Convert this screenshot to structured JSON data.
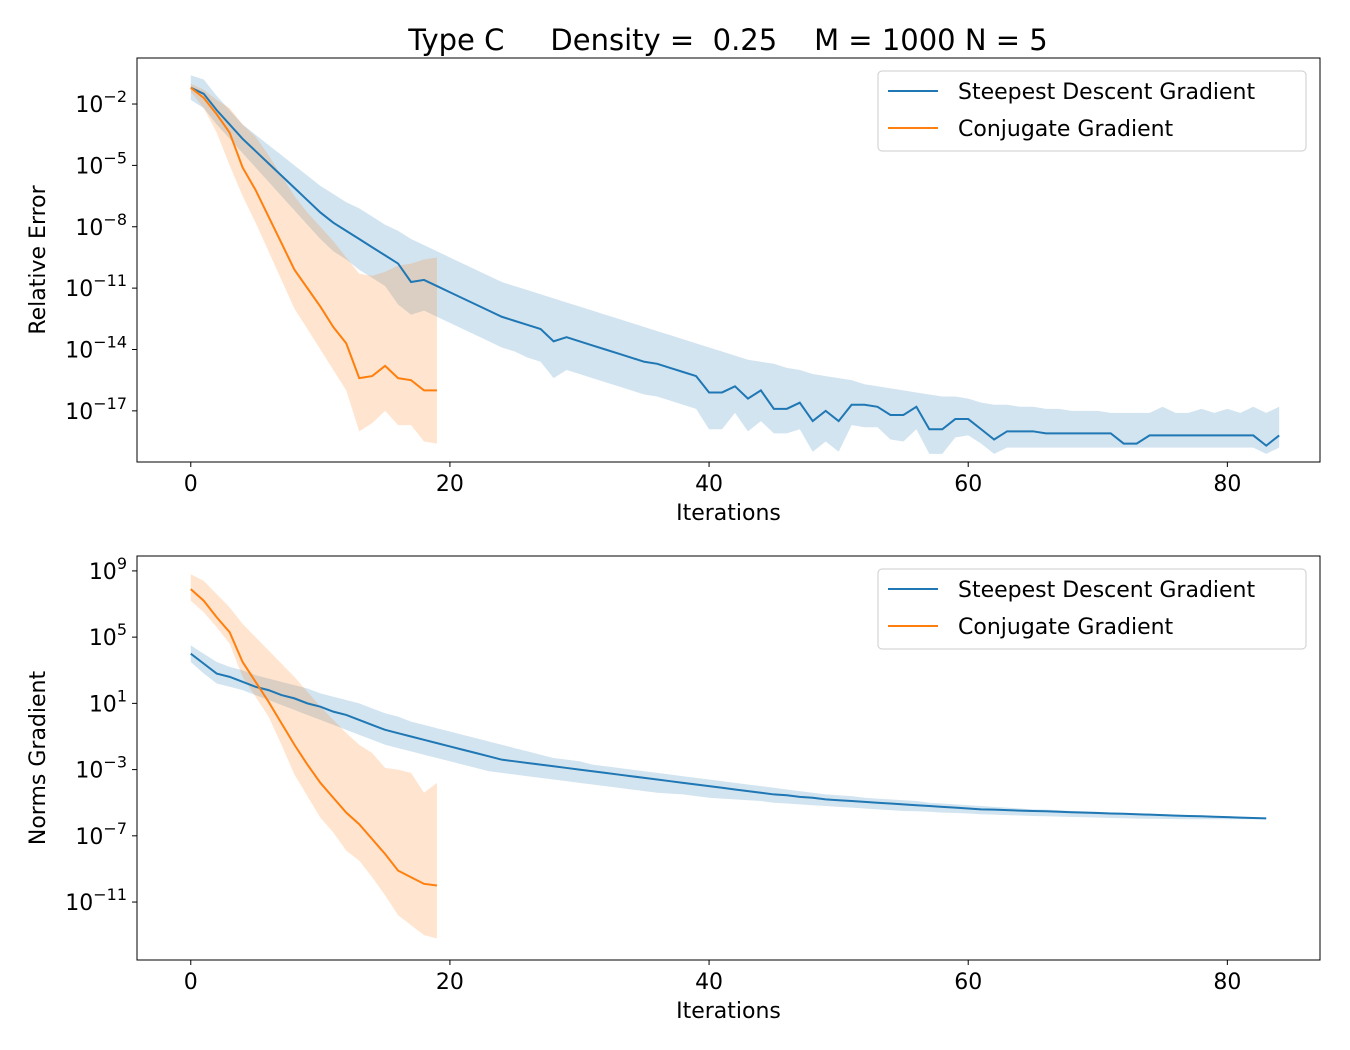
{
  "figure": {
    "title": "Type C     Density =  0.25    M = 1000 N = 5"
  },
  "colors": {
    "sd": "#1f77b4",
    "cg": "#ff7f0e"
  },
  "chart_data": [
    {
      "type": "line",
      "ylabel": "Relative Error",
      "xlabel": "Iterations",
      "xlim": [
        -4.15,
        87.15
      ],
      "ylim_log10": [
        -19.5,
        0.25
      ],
      "y_scale": "log",
      "xticks": [
        0,
        20,
        40,
        60,
        80
      ],
      "ytick_exponents": [
        -2,
        -5,
        -8,
        -11,
        -14,
        -17
      ],
      "legend_position": "upper right",
      "series": [
        {
          "name": "Steepest Descent Gradient",
          "color": "#1f77b4",
          "x_start": 0,
          "log10_mean": [
            -1.2,
            -1.5,
            -2.3,
            -3.0,
            -3.7,
            -4.3,
            -4.9,
            -5.5,
            -6.1,
            -6.7,
            -7.3,
            -7.8,
            -8.2,
            -8.6,
            -9.0,
            -9.4,
            -9.8,
            -10.7,
            -10.6,
            -10.9,
            -11.2,
            -11.5,
            -11.8,
            -12.1,
            -12.4,
            -12.6,
            -12.8,
            -13.0,
            -13.6,
            -13.4,
            -13.6,
            -13.8,
            -14.0,
            -14.2,
            -14.4,
            -14.6,
            -14.7,
            -14.9,
            -15.1,
            -15.3,
            -16.1,
            -16.1,
            -15.8,
            -16.4,
            -16.0,
            -16.9,
            -16.9,
            -16.6,
            -17.5,
            -17.0,
            -17.5,
            -16.7,
            -16.7,
            -16.8,
            -17.2,
            -17.2,
            -16.8,
            -17.9,
            -17.9,
            -17.4,
            -17.4,
            -17.9,
            -18.4,
            -18.0,
            -18.0,
            -18.0,
            -18.1,
            -18.1,
            -18.1,
            -18.1,
            -18.1,
            -18.1,
            -18.6,
            -18.6,
            -18.2,
            -18.2,
            -18.2,
            -18.2,
            -18.2,
            -18.2,
            -18.2,
            -18.2,
            -18.2,
            -18.7,
            -18.2
          ],
          "log10_upper": [
            -0.6,
            -0.8,
            -1.6,
            -2.3,
            -3.0,
            -3.5,
            -4.0,
            -4.5,
            -5.0,
            -5.5,
            -6.0,
            -6.4,
            -6.8,
            -7.1,
            -7.5,
            -7.9,
            -8.2,
            -8.6,
            -8.9,
            -9.2,
            -9.5,
            -9.8,
            -10.1,
            -10.4,
            -10.7,
            -10.9,
            -11.1,
            -11.3,
            -11.5,
            -11.7,
            -11.9,
            -12.1,
            -12.3,
            -12.5,
            -12.7,
            -12.9,
            -13.1,
            -13.3,
            -13.5,
            -13.7,
            -13.9,
            -14.1,
            -14.3,
            -14.5,
            -14.6,
            -14.7,
            -14.9,
            -15.0,
            -15.2,
            -15.3,
            -15.4,
            -15.5,
            -15.7,
            -15.8,
            -15.9,
            -16.0,
            -16.1,
            -16.2,
            -16.3,
            -16.3,
            -16.4,
            -16.6,
            -16.7,
            -16.7,
            -16.8,
            -16.8,
            -16.9,
            -16.9,
            -17.0,
            -17.0,
            -17.0,
            -17.1,
            -17.1,
            -17.1,
            -17.1,
            -16.8,
            -17.1,
            -17.1,
            -16.9,
            -17.1,
            -16.9,
            -17.1,
            -16.8,
            -17.1,
            -16.8
          ],
          "log10_lower": [
            -1.8,
            -2.2,
            -3.0,
            -3.7,
            -4.4,
            -5.1,
            -5.8,
            -6.5,
            -7.2,
            -7.9,
            -8.6,
            -9.2,
            -9.6,
            -10.1,
            -10.5,
            -10.9,
            -11.8,
            -12.3,
            -12.1,
            -12.4,
            -12.7,
            -13.0,
            -13.3,
            -13.6,
            -13.9,
            -14.1,
            -14.4,
            -14.6,
            -15.4,
            -15.0,
            -15.2,
            -15.4,
            -15.6,
            -15.8,
            -16.0,
            -16.2,
            -16.3,
            -16.5,
            -16.7,
            -16.9,
            -17.9,
            -17.9,
            -17.1,
            -18.0,
            -17.5,
            -18.1,
            -18.1,
            -17.9,
            -19.0,
            -18.5,
            -19.0,
            -17.7,
            -17.8,
            -17.8,
            -18.4,
            -18.5,
            -17.9,
            -19.1,
            -19.1,
            -18.3,
            -18.2,
            -18.6,
            -19.1,
            -18.8,
            -18.8,
            -18.8,
            -18.8,
            -18.8,
            -18.8,
            -18.8,
            -18.8,
            -18.8,
            -18.8,
            -18.8,
            -18.8,
            -18.8,
            -18.8,
            -18.8,
            -18.8,
            -18.8,
            -18.8,
            -18.8,
            -18.8,
            -19.1,
            -18.8
          ]
        },
        {
          "name": "Conjugate Gradient",
          "color": "#ff7f0e",
          "x_start": 0,
          "log10_mean": [
            -1.2,
            -1.7,
            -2.5,
            -3.4,
            -5.1,
            -6.2,
            -7.5,
            -8.8,
            -10.1,
            -11.0,
            -11.9,
            -12.9,
            -13.7,
            -15.4,
            -15.3,
            -14.8,
            -15.4,
            -15.5,
            -16.0,
            -16.0
          ],
          "log10_upper": [
            -1.0,
            -1.3,
            -1.8,
            -2.2,
            -3.0,
            -3.6,
            -4.5,
            -5.5,
            -6.5,
            -7.3,
            -8.0,
            -8.7,
            -9.5,
            -10.3,
            -10.4,
            -10.2,
            -9.9,
            -9.8,
            -9.6,
            -9.5
          ],
          "log10_lower": [
            -1.4,
            -2.2,
            -3.4,
            -5.0,
            -6.5,
            -7.8,
            -9.2,
            -10.6,
            -12.0,
            -13.0,
            -14.0,
            -15.0,
            -16.0,
            -18.0,
            -17.6,
            -17.0,
            -17.7,
            -17.7,
            -18.5,
            -18.6
          ]
        }
      ]
    },
    {
      "type": "line",
      "ylabel": "Norms Gradient",
      "xlabel": "Iterations",
      "xlim": [
        -4.15,
        87.15
      ],
      "ylim_log10": [
        -14.5,
        9.9
      ],
      "y_scale": "log",
      "xticks": [
        0,
        20,
        40,
        60,
        80
      ],
      "ytick_exponents": [
        9,
        5,
        1,
        -3,
        -7,
        -11
      ],
      "legend_position": "upper right",
      "series": [
        {
          "name": "Steepest Descent Gradient",
          "color": "#1f77b4",
          "x_start": 0,
          "log10_mean": [
            4.0,
            3.4,
            2.8,
            2.6,
            2.3,
            2.0,
            1.8,
            1.5,
            1.3,
            1.0,
            0.8,
            0.5,
            0.3,
            0.0,
            -0.3,
            -0.6,
            -0.8,
            -1.0,
            -1.2,
            -1.4,
            -1.6,
            -1.8,
            -2.0,
            -2.2,
            -2.4,
            -2.5,
            -2.6,
            -2.7,
            -2.8,
            -2.9,
            -3.0,
            -3.1,
            -3.2,
            -3.3,
            -3.4,
            -3.5,
            -3.6,
            -3.7,
            -3.8,
            -3.9,
            -4.0,
            -4.1,
            -4.2,
            -4.3,
            -4.4,
            -4.5,
            -4.55,
            -4.65,
            -4.7,
            -4.8,
            -4.85,
            -4.9,
            -4.95,
            -5.0,
            -5.05,
            -5.1,
            -5.15,
            -5.2,
            -5.25,
            -5.3,
            -5.35,
            -5.4,
            -5.42,
            -5.45,
            -5.48,
            -5.5,
            -5.52,
            -5.55,
            -5.58,
            -5.6,
            -5.62,
            -5.65,
            -5.67,
            -5.7,
            -5.72,
            -5.75,
            -5.78,
            -5.8,
            -5.82,
            -5.85,
            -5.87,
            -5.9,
            -5.92,
            -5.95
          ],
          "log10_upper": [
            4.5,
            4.0,
            3.5,
            3.2,
            3.0,
            2.7,
            2.5,
            2.3,
            2.1,
            1.9,
            1.6,
            1.4,
            1.2,
            1.0,
            0.7,
            0.4,
            0.2,
            -0.1,
            -0.3,
            -0.5,
            -0.7,
            -0.9,
            -1.1,
            -1.3,
            -1.5,
            -1.7,
            -1.9,
            -2.1,
            -2.3,
            -2.4,
            -2.5,
            -2.7,
            -2.8,
            -2.9,
            -3.0,
            -3.1,
            -3.2,
            -3.3,
            -3.4,
            -3.5,
            -3.6,
            -3.7,
            -3.8,
            -3.9,
            -4.0,
            -4.1,
            -4.2,
            -4.3,
            -4.4,
            -4.5,
            -4.55,
            -4.6,
            -4.7,
            -4.75,
            -4.8,
            -4.85,
            -4.9,
            -5.0,
            -5.05,
            -5.1,
            -5.15,
            -5.2,
            -5.25,
            -5.3,
            -5.35,
            -5.4,
            -5.42,
            -5.45,
            -5.5,
            -5.52,
            -5.55,
            -5.6,
            -5.62,
            -5.65,
            -5.67,
            -5.7,
            -5.72,
            -5.75,
            -5.78,
            -5.8,
            -5.82,
            -5.85,
            -5.87,
            -5.9
          ],
          "log10_lower": [
            3.5,
            2.8,
            2.2,
            2.0,
            1.8,
            1.5,
            1.2,
            0.9,
            0.6,
            0.3,
            0.0,
            -0.3,
            -0.6,
            -0.9,
            -1.2,
            -1.5,
            -1.7,
            -1.9,
            -2.1,
            -2.3,
            -2.5,
            -2.7,
            -2.9,
            -3.1,
            -3.2,
            -3.3,
            -3.4,
            -3.5,
            -3.6,
            -3.7,
            -3.8,
            -3.9,
            -4.0,
            -4.1,
            -4.2,
            -4.3,
            -4.4,
            -4.45,
            -4.5,
            -4.6,
            -4.7,
            -4.75,
            -4.8,
            -4.85,
            -4.9,
            -5.0,
            -5.05,
            -5.1,
            -5.15,
            -5.2,
            -5.25,
            -5.3,
            -5.35,
            -5.4,
            -5.45,
            -5.5,
            -5.52,
            -5.55,
            -5.6,
            -5.62,
            -5.65,
            -5.7,
            -5.72,
            -5.75,
            -5.77,
            -5.8,
            -5.82,
            -5.84,
            -5.86,
            -5.88,
            -5.9,
            -5.92,
            -5.94,
            -5.96,
            -5.97,
            -5.98,
            -5.99,
            -6.0,
            -6.0,
            -6.0,
            -6.0,
            -6.0,
            -6.0,
            -6.0
          ]
        },
        {
          "name": "Conjugate Gradient",
          "color": "#ff7f0e",
          "x_start": 0,
          "log10_mean": [
            7.9,
            7.2,
            6.2,
            5.3,
            3.5,
            2.3,
            1.1,
            -0.2,
            -1.5,
            -2.7,
            -3.8,
            -4.7,
            -5.6,
            -6.3,
            -7.2,
            -8.1,
            -9.1,
            -9.5,
            -9.9,
            -10.0
          ],
          "log10_upper": [
            8.8,
            8.4,
            7.6,
            6.8,
            5.8,
            5.0,
            4.2,
            3.4,
            2.6,
            1.7,
            0.8,
            0.0,
            -0.8,
            -1.5,
            -2.0,
            -2.9,
            -3.0,
            -3.2,
            -4.4,
            -3.8
          ],
          "log10_lower": [
            7.2,
            6.5,
            5.6,
            4.6,
            2.6,
            1.4,
            0.2,
            -1.5,
            -3.3,
            -4.6,
            -5.9,
            -6.8,
            -7.9,
            -8.5,
            -9.5,
            -10.6,
            -11.8,
            -12.4,
            -13.0,
            -13.2
          ]
        }
      ]
    }
  ]
}
